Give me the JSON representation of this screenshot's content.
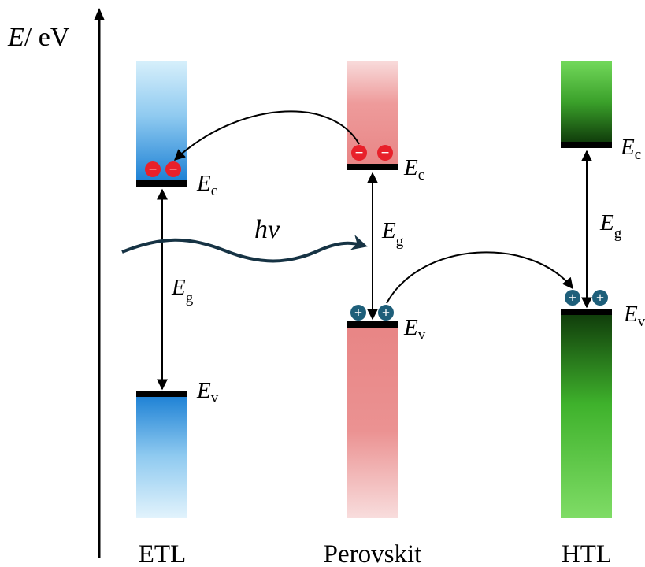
{
  "axis": {
    "symbol": "E",
    "unit": "/ eV"
  },
  "labels": {
    "energy_symbol": "E",
    "conduction_sub": "c",
    "valence_sub": "v",
    "gap_sub": "g",
    "photon": "hν",
    "electron_sign": "−",
    "hole_sign": "+"
  },
  "layers": [
    {
      "name": "ETL"
    },
    {
      "name": "Perovskit"
    },
    {
      "name": "HTL"
    }
  ],
  "colors": {
    "etl": "#1a7fd4",
    "perovskite": "#e88585",
    "htl": "#1a5c0d",
    "htl_light": "#5ed63f",
    "electron": "#e8202a",
    "hole": "#1e5f7a",
    "photon_wave": "#163344"
  }
}
